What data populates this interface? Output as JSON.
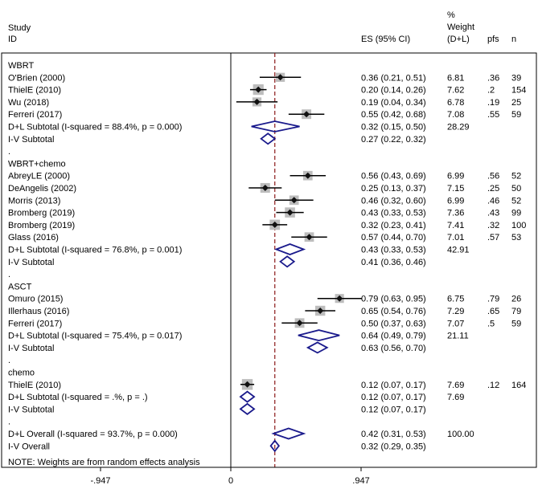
{
  "chart_data": {
    "type": "forest",
    "header": {
      "study": "Study",
      "id": "ID",
      "es": "ES (95% CI)",
      "pct": "%",
      "weight": "Weight",
      "dl": "(D+L)",
      "pfs": "pfs",
      "n": "n"
    },
    "axis": {
      "min": -0.947,
      "max": 0.947,
      "ticks": [
        "-.947",
        "0",
        ".947"
      ],
      "null_line": 0,
      "overall_es": 0.32
    },
    "rows": [
      {
        "kind": "group",
        "label": "WBRT"
      },
      {
        "kind": "study",
        "label": "O'Brien (2000)",
        "es": 0.36,
        "lo": 0.21,
        "hi": 0.51,
        "es_text": "0.36 (0.21, 0.51)",
        "weight": "6.81",
        "pfs": ".36",
        "n": "39"
      },
      {
        "kind": "study",
        "label": "ThielE (2010)",
        "es": 0.2,
        "lo": 0.14,
        "hi": 0.26,
        "es_text": "0.20 (0.14, 0.26)",
        "weight": "7.62",
        "pfs": ".2",
        "n": "154"
      },
      {
        "kind": "study",
        "label": "Wu  (2018)",
        "es": 0.19,
        "lo": 0.04,
        "hi": 0.34,
        "es_text": "0.19 (0.04, 0.34)",
        "weight": "6.78",
        "pfs": ".19",
        "n": "25"
      },
      {
        "kind": "study",
        "label": "Ferreri  (2017)",
        "es": 0.55,
        "lo": 0.42,
        "hi": 0.68,
        "es_text": "0.55 (0.42, 0.68)",
        "weight": "7.08",
        "pfs": ".55",
        "n": "59"
      },
      {
        "kind": "subtotal",
        "label": "D+L Subtotal  (I-squared = 88.4%, p = 0.000)",
        "es": 0.32,
        "lo": 0.15,
        "hi": 0.5,
        "es_text": "0.32 (0.15, 0.50)",
        "weight": "28.29"
      },
      {
        "kind": "subtotal",
        "label": "I-V Subtotal",
        "es": 0.27,
        "lo": 0.22,
        "hi": 0.32,
        "es_text": "0.27 (0.22, 0.32)"
      },
      {
        "kind": "dot",
        "label": "."
      },
      {
        "kind": "group",
        "label": "WBRT+chemo"
      },
      {
        "kind": "study",
        "label": "AbreyLE (2000)",
        "es": 0.56,
        "lo": 0.43,
        "hi": 0.69,
        "es_text": "0.56 (0.43, 0.69)",
        "weight": "6.99",
        "pfs": ".56",
        "n": "52"
      },
      {
        "kind": "study",
        "label": "DeAngelis  (2002)",
        "es": 0.25,
        "lo": 0.13,
        "hi": 0.37,
        "es_text": "0.25 (0.13, 0.37)",
        "weight": "7.15",
        "pfs": ".25",
        "n": "50"
      },
      {
        "kind": "study",
        "label": "Morris  (2013)",
        "es": 0.46,
        "lo": 0.32,
        "hi": 0.6,
        "es_text": "0.46 (0.32, 0.60)",
        "weight": "6.99",
        "pfs": ".46",
        "n": "52"
      },
      {
        "kind": "study",
        "label": "Bromberg  (2019)",
        "es": 0.43,
        "lo": 0.33,
        "hi": 0.53,
        "es_text": "0.43 (0.33, 0.53)",
        "weight": "7.36",
        "pfs": ".43",
        "n": "99"
      },
      {
        "kind": "study",
        "label": "Bromberg  (2019)",
        "es": 0.32,
        "lo": 0.23,
        "hi": 0.41,
        "es_text": "0.32 (0.23, 0.41)",
        "weight": "7.41",
        "pfs": ".32",
        "n": "100"
      },
      {
        "kind": "study",
        "label": "Glass  (2016)",
        "es": 0.57,
        "lo": 0.44,
        "hi": 0.7,
        "es_text": "0.57 (0.44, 0.70)",
        "weight": "7.01",
        "pfs": ".57",
        "n": "53"
      },
      {
        "kind": "subtotal",
        "label": "D+L Subtotal  (I-squared = 76.8%, p = 0.001)",
        "es": 0.43,
        "lo": 0.33,
        "hi": 0.53,
        "es_text": "0.43 (0.33, 0.53)",
        "weight": "42.91"
      },
      {
        "kind": "subtotal",
        "label": "I-V Subtotal",
        "es": 0.41,
        "lo": 0.36,
        "hi": 0.46,
        "es_text": "0.41 (0.36, 0.46)"
      },
      {
        "kind": "dot",
        "label": "."
      },
      {
        "kind": "group",
        "label": "ASCT"
      },
      {
        "kind": "study",
        "label": "Omuro (2015)",
        "es": 0.79,
        "lo": 0.63,
        "hi": 0.95,
        "es_text": "0.79 (0.63, 0.95)",
        "weight": "6.75",
        "pfs": ".79",
        "n": "26"
      },
      {
        "kind": "study",
        "label": "Illerhaus (2016)",
        "es": 0.65,
        "lo": 0.54,
        "hi": 0.76,
        "es_text": "0.65 (0.54, 0.76)",
        "weight": "7.29",
        "pfs": ".65",
        "n": "79"
      },
      {
        "kind": "study",
        "label": "Ferreri (2017)",
        "es": 0.5,
        "lo": 0.37,
        "hi": 0.63,
        "es_text": "0.50 (0.37, 0.63)",
        "weight": "7.07",
        "pfs": ".5",
        "n": "59"
      },
      {
        "kind": "subtotal",
        "label": "D+L Subtotal  (I-squared = 75.4%, p = 0.017)",
        "es": 0.64,
        "lo": 0.49,
        "hi": 0.79,
        "es_text": "0.64 (0.49, 0.79)",
        "weight": "21.11"
      },
      {
        "kind": "subtotal",
        "label": "I-V Subtotal",
        "es": 0.63,
        "lo": 0.56,
        "hi": 0.7,
        "es_text": "0.63 (0.56, 0.70)"
      },
      {
        "kind": "dot",
        "label": "."
      },
      {
        "kind": "group",
        "label": "chemo"
      },
      {
        "kind": "study",
        "label": "ThielE (2010)",
        "es": 0.12,
        "lo": 0.07,
        "hi": 0.17,
        "es_text": "0.12 (0.07, 0.17)",
        "weight": "7.69",
        "pfs": ".12",
        "n": "164"
      },
      {
        "kind": "subtotal",
        "label": "D+L Subtotal  (I-squared = .%, p = .)",
        "es": 0.12,
        "lo": 0.07,
        "hi": 0.17,
        "es_text": "0.12 (0.07, 0.17)",
        "weight": "7.69"
      },
      {
        "kind": "subtotal",
        "label": "I-V Subtotal",
        "es": 0.12,
        "lo": 0.07,
        "hi": 0.17,
        "es_text": "0.12 (0.07, 0.17)"
      },
      {
        "kind": "dot",
        "label": "."
      },
      {
        "kind": "subtotal",
        "label": "D+L Overall  (I-squared = 93.7%, p = 0.000)",
        "es": 0.42,
        "lo": 0.31,
        "hi": 0.53,
        "es_text": "0.42 (0.31, 0.53)",
        "weight": "100.00"
      },
      {
        "kind": "subtotal",
        "label": "I-V Overall",
        "es": 0.32,
        "lo": 0.29,
        "hi": 0.35,
        "es_text": "0.32 (0.29, 0.35)"
      }
    ],
    "note": "NOTE: Weights are from random effects analysis",
    "colors": {
      "diamond": "#1a1a8c",
      "box": "#bdbdbd",
      "ref_line": "#8b1a1a",
      "ci": "#000000"
    }
  }
}
